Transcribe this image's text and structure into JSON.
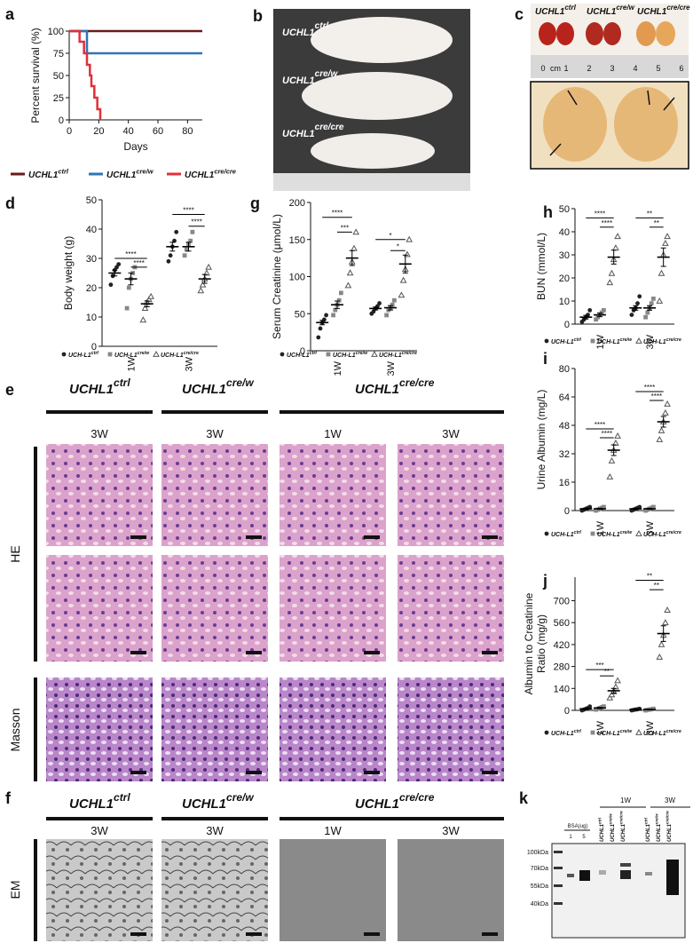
{
  "chart_data": [
    {
      "type": "line",
      "step": true,
      "label": "a",
      "ylabel": "Percent survival (%)",
      "xlabel": "Days",
      "xlim": [
        0,
        90
      ],
      "xticks": [
        0,
        20,
        40,
        60,
        80
      ],
      "ylim": [
        0,
        100
      ],
      "yticks": [
        0,
        25,
        50,
        75,
        100
      ],
      "series": [
        {
          "name": "UCHL1",
          "superscript": "ctrl",
          "color": "#6b1a1a",
          "x": [
            0,
            90
          ],
          "values": [
            100,
            100
          ]
        },
        {
          "name": "UCHL1",
          "superscript": "cre/w",
          "color": "#2e75b6",
          "x": [
            0,
            12,
            90
          ],
          "values": [
            100,
            75,
            75
          ]
        },
        {
          "name": "UCHL1",
          "superscript": "cre/cre",
          "color": "#e0303a",
          "x": [
            0,
            7,
            10,
            12,
            14,
            15,
            17,
            19,
            21
          ],
          "values": [
            100,
            88,
            75,
            62,
            50,
            38,
            25,
            12,
            0
          ]
        }
      ]
    },
    {
      "type": "scatter",
      "label": "d",
      "ylabel": "Body weight (g)",
      "ylim": [
        0,
        50
      ],
      "yticks": [
        0,
        10,
        20,
        30,
        40,
        50
      ],
      "categories": [
        "1W",
        "3W"
      ],
      "series": [
        {
          "name": "UCH-L1",
          "superscript": "ctrl",
          "marker": "circle",
          "color": "#222222",
          "means": [
            25,
            34
          ],
          "sems": [
            1,
            1.5
          ],
          "points": [
            [
              21,
              24,
              26,
              27,
              28
            ],
            [
              29,
              31,
              34,
              36,
              39
            ]
          ]
        },
        {
          "name": "UCH-L1",
          "superscript": "cre/w",
          "marker": "square",
          "color": "#888888",
          "means": [
            23,
            34
          ],
          "sems": [
            2,
            1.5
          ],
          "points": [
            [
              13,
              20,
              23,
              25,
              27
            ],
            [
              31,
              33,
              35,
              36,
              39
            ]
          ]
        },
        {
          "name": "UCH-L1",
          "superscript": "cre/cre",
          "marker": "triangle",
          "color": "#555555",
          "means": [
            14.5,
            23
          ],
          "sems": [
            1,
            1.5
          ],
          "points": [
            [
              9,
              13,
              15,
              16,
              17
            ],
            [
              19,
              21,
              23,
              25,
              27
            ]
          ]
        }
      ],
      "brackets": [
        {
          "category": 0,
          "from": 0,
          "to": 2,
          "y": 30,
          "label": "****"
        },
        {
          "category": 0,
          "from": 1,
          "to": 2,
          "y": 27,
          "label": "****"
        },
        {
          "category": 1,
          "from": 0,
          "to": 2,
          "y": 45,
          "label": "****"
        },
        {
          "category": 1,
          "from": 1,
          "to": 2,
          "y": 41,
          "label": "****"
        }
      ]
    },
    {
      "type": "scatter",
      "label": "g",
      "ylabel": "Serum Creatinine (μmol/L)",
      "ylim": [
        0,
        200
      ],
      "yticks": [
        0,
        50,
        100,
        150,
        200
      ],
      "categories": [
        "1W",
        "3W"
      ],
      "series": [
        {
          "name": "UCH-L1",
          "superscript": "ctrl",
          "marker": "circle",
          "color": "#222222",
          "means": [
            38,
            57
          ],
          "sems": [
            3,
            2
          ],
          "points": [
            [
              18,
              30,
              38,
              42,
              48
            ],
            [
              50,
              53,
              57,
              60,
              64
            ]
          ]
        },
        {
          "name": "UCH-L1",
          "superscript": "cre/w",
          "marker": "square",
          "color": "#888888",
          "means": [
            62,
            58
          ],
          "sems": [
            5,
            3
          ],
          "points": [
            [
              48,
              55,
              62,
              68,
              78
            ],
            [
              48,
              55,
              58,
              62,
              68
            ]
          ]
        },
        {
          "name": "UCH-L1",
          "superscript": "cre/cre",
          "marker": "triangle",
          "color": "#555555",
          "means": [
            125,
            117
          ],
          "sems": [
            10,
            12
          ],
          "points": [
            [
              88,
              105,
              120,
              138,
              160
            ],
            [
              75,
              95,
              110,
              130,
              150
            ]
          ]
        }
      ],
      "brackets": [
        {
          "category": 0,
          "from": 0,
          "to": 2,
          "y": 180,
          "label": "****"
        },
        {
          "category": 0,
          "from": 1,
          "to": 2,
          "y": 160,
          "label": "***"
        },
        {
          "category": 1,
          "from": 0,
          "to": 2,
          "y": 150,
          "label": "*"
        },
        {
          "category": 1,
          "from": 1,
          "to": 2,
          "y": 135,
          "label": "*"
        }
      ]
    },
    {
      "type": "scatter",
      "label": "h",
      "ylabel": "BUN (mmol/L)",
      "ylim": [
        0,
        50
      ],
      "yticks": [
        0,
        10,
        20,
        30,
        40,
        50
      ],
      "categories": [
        "1W",
        "3W"
      ],
      "series": [
        {
          "name": "UCH-L1",
          "superscript": "ctrl",
          "marker": "circle",
          "color": "#222222",
          "means": [
            3,
            7
          ],
          "sems": [
            0.8,
            1
          ],
          "points": [
            [
              1,
              2,
              3,
              4,
              6
            ],
            [
              4,
              6,
              7,
              9,
              12
            ]
          ]
        },
        {
          "name": "UCH-L1",
          "superscript": "cre/w",
          "marker": "square",
          "color": "#888888",
          "means": [
            4,
            7
          ],
          "sems": [
            0.8,
            1
          ],
          "points": [
            [
              2,
              3,
              4,
              5,
              6
            ],
            [
              3,
              5,
              7,
              9,
              11
            ]
          ]
        },
        {
          "name": "UCH-L1",
          "superscript": "cre/cre",
          "marker": "triangle",
          "color": "#555555",
          "means": [
            29,
            29
          ],
          "sems": [
            3,
            4
          ],
          "points": [
            [
              18,
              22,
              28,
              33,
              38
            ],
            [
              10,
              22,
              30,
              35,
              38
            ]
          ]
        }
      ],
      "brackets": [
        {
          "category": 0,
          "from": 0,
          "to": 2,
          "y": 46,
          "label": "****"
        },
        {
          "category": 0,
          "from": 1,
          "to": 2,
          "y": 42,
          "label": "****"
        },
        {
          "category": 1,
          "from": 0,
          "to": 2,
          "y": 46,
          "label": "**"
        },
        {
          "category": 1,
          "from": 1,
          "to": 2,
          "y": 42,
          "label": "**"
        }
      ]
    },
    {
      "type": "scatter",
      "label": "i",
      "ylabel": "Urine Albumin (mg/L)",
      "ylim": [
        0,
        80
      ],
      "yticks": [
        0,
        16,
        32,
        48,
        64,
        80
      ],
      "categories": [
        "1W",
        "3W"
      ],
      "series": [
        {
          "name": "UCH-L1",
          "superscript": "ctrl",
          "marker": "circle",
          "color": "#222222",
          "means": [
            1,
            1
          ],
          "sems": [
            0.3,
            0.3
          ],
          "points": [
            [
              0,
              0.5,
              1,
              1.5,
              2
            ],
            [
              0,
              0.5,
              1,
              1.5,
              2
            ]
          ]
        },
        {
          "name": "UCH-L1",
          "superscript": "cre/w",
          "marker": "square",
          "color": "#888888",
          "means": [
            1,
            1
          ],
          "sems": [
            0.3,
            0.3
          ],
          "points": [
            [
              0,
              0.5,
              1,
              1.5,
              2
            ],
            [
              0,
              0.5,
              1,
              1.5,
              2
            ]
          ]
        },
        {
          "name": "UCH-L1",
          "superscript": "cre/cre",
          "marker": "triangle",
          "color": "#555555",
          "means": [
            34,
            50
          ],
          "sems": [
            3,
            3
          ],
          "points": [
            [
              19,
              28,
              34,
              38,
              42
            ],
            [
              40,
              45,
              50,
              55,
              60
            ]
          ]
        }
      ],
      "brackets": [
        {
          "category": 0,
          "from": 0,
          "to": 2,
          "y": 46,
          "label": "****"
        },
        {
          "category": 0,
          "from": 1,
          "to": 2,
          "y": 41,
          "label": "****"
        },
        {
          "category": 1,
          "from": 0,
          "to": 2,
          "y": 67,
          "label": "****"
        },
        {
          "category": 1,
          "from": 1,
          "to": 2,
          "y": 62,
          "label": "****"
        }
      ]
    },
    {
      "type": "scatter",
      "label": "j",
      "ylabel": [
        "Albumin to Creatinine",
        "Ratio (mg/g)"
      ],
      "ylim": [
        0,
        850
      ],
      "yticks": [
        0,
        140,
        280,
        420,
        560,
        700
      ],
      "categories": [
        "1W",
        "3W"
      ],
      "series": [
        {
          "name": "UCH-L1",
          "superscript": "ctrl",
          "marker": "circle",
          "color": "#222222",
          "means": [
            10,
            5
          ],
          "sems": [
            4,
            2
          ],
          "points": [
            [
              0,
              5,
              10,
              15,
              25
            ],
            [
              0,
              3,
              5,
              7,
              10
            ]
          ]
        },
        {
          "name": "UCH-L1",
          "superscript": "cre/w",
          "marker": "square",
          "color": "#888888",
          "means": [
            15,
            5
          ],
          "sems": [
            4,
            2
          ],
          "points": [
            [
              5,
              10,
              15,
              20,
              25
            ],
            [
              0,
              3,
              5,
              7,
              10
            ]
          ]
        },
        {
          "name": "UCH-L1",
          "superscript": "cre/cre",
          "marker": "triangle",
          "color": "#555555",
          "means": [
            125,
            490
          ],
          "sems": [
            15,
            50
          ],
          "points": [
            [
              80,
              100,
              120,
              150,
              190
            ],
            [
              340,
              420,
              480,
              560,
              640
            ]
          ]
        }
      ],
      "brackets": [
        {
          "category": 0,
          "from": 0,
          "to": 2,
          "y": 260,
          "label": "***"
        },
        {
          "category": 0,
          "from": 1,
          "to": 2,
          "y": 220,
          "label": "**"
        },
        {
          "category": 1,
          "from": 0,
          "to": 2,
          "y": 830,
          "label": "**"
        },
        {
          "category": 1,
          "from": 1,
          "to": 2,
          "y": 770,
          "label": "**"
        }
      ]
    }
  ],
  "images": {
    "b": {
      "label": "b",
      "captions": [
        {
          "name": "UCHL1",
          "superscript": "ctrl"
        },
        {
          "name": "UCHL1",
          "superscript": "cre/w"
        },
        {
          "name": "UCHL1",
          "superscript": "cre/cre"
        }
      ]
    },
    "c": {
      "label": "c",
      "captions": [
        {
          "name": "UCHL1",
          "superscript": "ctrl"
        },
        {
          "name": "UCHL1",
          "superscript": "cre/w"
        },
        {
          "name": "UCHL1",
          "superscript": "cre/cre"
        }
      ],
      "ruler": [
        "0",
        "cm",
        "1",
        "2",
        "3",
        "4",
        "5",
        "6"
      ]
    },
    "e": {
      "label": "e",
      "genotypes": [
        {
          "name": "UCHL1",
          "superscript": "ctrl"
        },
        {
          "name": "UCHL1",
          "superscript": "cre/w"
        },
        {
          "name": "UCHL1",
          "superscript": "cre/cre"
        }
      ],
      "columns": [
        "3W",
        "3W",
        "1W",
        "3W"
      ],
      "rows": [
        "HE",
        "Masson"
      ]
    },
    "f": {
      "label": "f",
      "genotypes": [
        {
          "name": "UCHL1",
          "superscript": "ctrl"
        },
        {
          "name": "UCHL1",
          "superscript": "cre/w"
        },
        {
          "name": "UCHL1",
          "superscript": "cre/cre"
        }
      ],
      "columns": [
        "3W",
        "3W",
        "1W",
        "3W"
      ],
      "rows": [
        "EM"
      ]
    },
    "k": {
      "label": "k",
      "groups": [
        "1W",
        "3W"
      ],
      "bsa": "BSA(ug)",
      "bsa_lanes": [
        "1",
        "5"
      ],
      "lanes": [
        {
          "name": "UCHL1",
          "superscript": "ctrl"
        },
        {
          "name": "UCHL1",
          "superscript": "cre/w"
        },
        {
          "name": "UCHL1",
          "superscript": "cre/cre"
        },
        {
          "name": "UCHL1",
          "superscript": "ctrl"
        },
        {
          "name": "UCHL1",
          "superscript": "cre/w"
        },
        {
          "name": "UCHL1",
          "superscript": "cre/cre"
        }
      ],
      "markers": [
        "100kDa",
        "70kDa",
        "55kDa",
        "40kDa"
      ]
    }
  }
}
